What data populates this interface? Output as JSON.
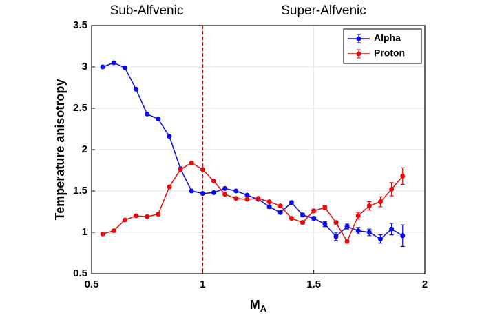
{
  "chart_data": {
    "type": "line",
    "annotations": [
      "Sub-Alfvenic",
      "Super-Alfvenic"
    ],
    "annotation_color": "#7030a0",
    "x_label": {
      "main": "M",
      "subscript": "A"
    },
    "y_label": "Temperature anisotropy",
    "x": [
      0.55,
      0.6,
      0.65,
      0.7,
      0.75,
      0.8,
      0.85,
      0.9,
      0.95,
      1.0,
      1.05,
      1.1,
      1.15,
      1.2,
      1.25,
      1.3,
      1.35,
      1.4,
      1.45,
      1.5,
      1.55,
      1.6,
      1.65,
      1.7,
      1.75,
      1.8,
      1.85,
      1.9
    ],
    "series": [
      {
        "name": "Alpha",
        "color": "#0a0ae6",
        "values": [
          3.0,
          3.05,
          2.99,
          2.73,
          2.43,
          2.37,
          2.16,
          1.77,
          1.5,
          1.47,
          1.48,
          1.53,
          1.5,
          1.45,
          1.4,
          1.31,
          1.24,
          1.36,
          1.21,
          1.17,
          1.1,
          0.95,
          1.07,
          1.02,
          1.0,
          0.92,
          1.04,
          0.96
        ],
        "errors": [
          0.01,
          0.01,
          0.01,
          0.01,
          0.01,
          0.01,
          0.01,
          0.01,
          0.01,
          0.01,
          0.01,
          0.01,
          0.01,
          0.01,
          0.01,
          0.02,
          0.02,
          0.02,
          0.02,
          0.02,
          0.03,
          0.05,
          0.03,
          0.04,
          0.04,
          0.05,
          0.07,
          0.13
        ]
      },
      {
        "name": "Proton",
        "color": "#e60a0a",
        "values": [
          0.98,
          1.02,
          1.15,
          1.2,
          1.19,
          1.22,
          1.55,
          1.76,
          1.84,
          1.76,
          1.62,
          1.46,
          1.41,
          1.4,
          1.41,
          1.37,
          1.32,
          1.17,
          1.12,
          1.26,
          1.3,
          1.12,
          0.89,
          1.2,
          1.32,
          1.37,
          1.52,
          1.68
        ],
        "errors": [
          0.01,
          0.01,
          0.01,
          0.01,
          0.01,
          0.01,
          0.01,
          0.01,
          0.01,
          0.01,
          0.01,
          0.01,
          0.01,
          0.01,
          0.01,
          0.01,
          0.01,
          0.01,
          0.02,
          0.02,
          0.02,
          0.02,
          0.02,
          0.04,
          0.05,
          0.06,
          0.08,
          0.1
        ]
      }
    ],
    "reference_line": {
      "x": 1,
      "color": "#c00000"
    },
    "xlim": [
      0.5,
      2
    ],
    "xticks": [
      0.5,
      1,
      1.5,
      2
    ],
    "ylim": [
      0.5,
      3.5
    ],
    "yticks": [
      0.5,
      1,
      1.5,
      2,
      2.5,
      3,
      3.5
    ],
    "grid": true,
    "legend": "upper-right"
  }
}
